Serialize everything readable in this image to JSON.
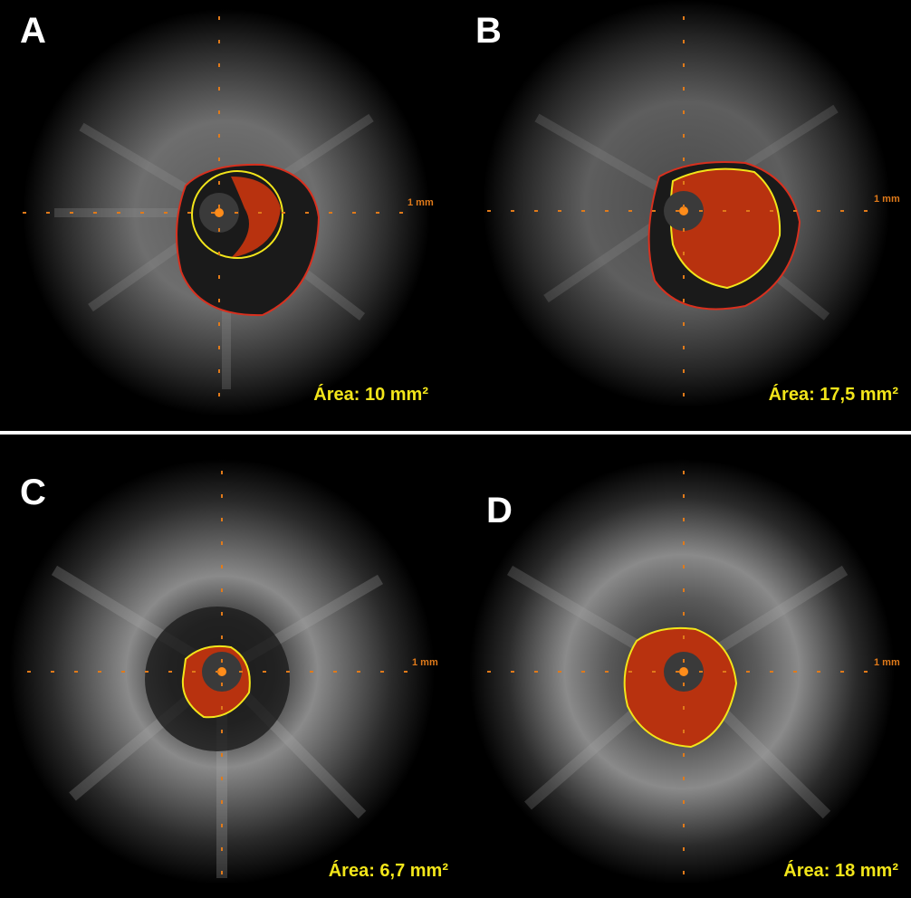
{
  "panels": [
    {
      "id": "A",
      "label": "A",
      "area": "Área: 10 mm²",
      "scale": "1 mm"
    },
    {
      "id": "B",
      "label": "B",
      "area": "Área: 17,5 mm²",
      "scale": "1 mm"
    },
    {
      "id": "C",
      "label": "C",
      "area": "Área: 6,7 mm²",
      "scale": "1 mm"
    },
    {
      "id": "D",
      "label": "D",
      "area": "Área: 18 mm²",
      "scale": "1 mm"
    }
  ],
  "colors": {
    "background": "#000000",
    "lumen_contour": "#f2e51a",
    "vessel_contour": "#d8301e",
    "blood_fill": "#b8320f",
    "catheter_marker": "#ff8c1a",
    "scale_ticks": "#e07a1a"
  }
}
